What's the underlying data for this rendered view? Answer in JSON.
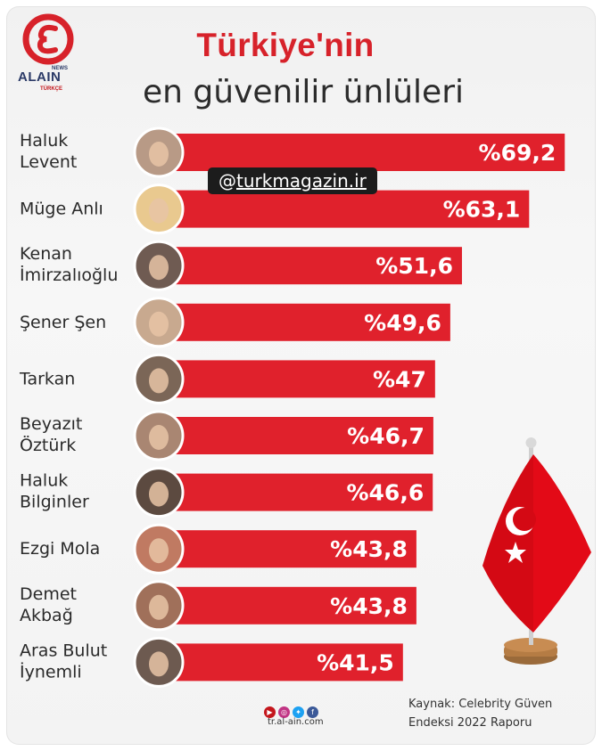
{
  "title_line1": "Türkiye'nin",
  "title_line2": "en güvenilir ünlüleri",
  "logo": {
    "brand": "ALAIN",
    "news": "NEWS",
    "sub": "TÜRKÇE"
  },
  "watermark": {
    "at": "@",
    "handle": "turkmagazin.ir"
  },
  "footer": {
    "site": "tr.al-ain.com",
    "source_line1": "Kaynak: Celebrity Güven",
    "source_line2": "Endeksi 2022 Raporu",
    "icons": [
      "youtube-icon",
      "instagram-icon",
      "twitter-icon",
      "facebook-icon"
    ]
  },
  "colors": {
    "bar": "#e0212c",
    "title": "#d7222a",
    "flag": "#e30a17"
  },
  "chart_data": {
    "type": "bar",
    "orientation": "horizontal",
    "categories": [
      [
        "Haluk",
        "Levent"
      ],
      [
        "Müge Anlı"
      ],
      [
        "Kenan",
        "İmirzalıoğlu"
      ],
      [
        "Şener Şen"
      ],
      [
        "Tarkan"
      ],
      [
        "Beyazıt",
        "Öztürk"
      ],
      [
        "Haluk",
        "Bilginler"
      ],
      [
        "Ezgi Mola"
      ],
      [
        "Demet",
        "Akbağ"
      ],
      [
        "Aras Bulut",
        "İynemli"
      ]
    ],
    "values": [
      69.2,
      63.1,
      51.6,
      49.6,
      47,
      46.7,
      46.6,
      43.8,
      43.8,
      41.5
    ],
    "labels": [
      "%69,2",
      "%63,1",
      "%51,6",
      "%49,6",
      "%47",
      "%46,7",
      "%46,6",
      "%43,8",
      "%43,8",
      "%41,5"
    ],
    "xlim": [
      0,
      100
    ]
  }
}
